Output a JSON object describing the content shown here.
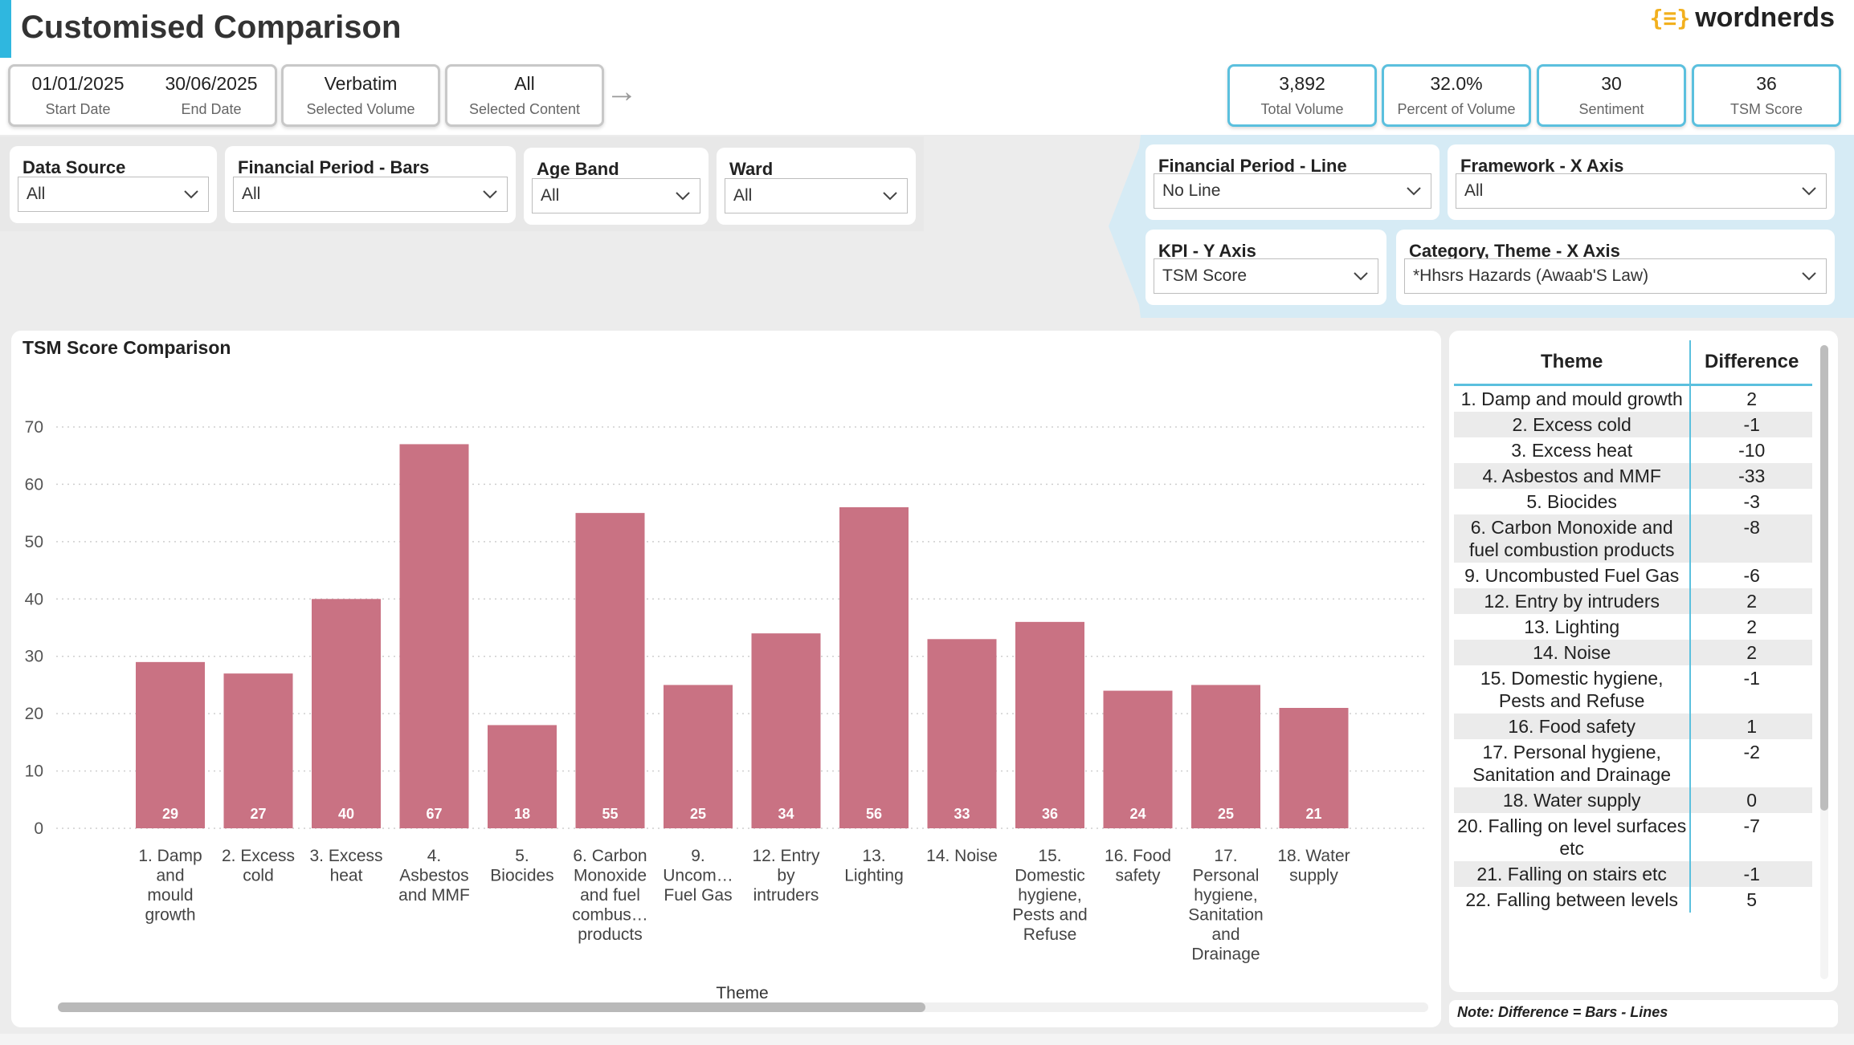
{
  "header": {
    "title": "Customised Comparison",
    "logo_text": "wordnerds",
    "accent_color": "#2fb7df"
  },
  "info_cards": {
    "start_date": {
      "value": "01/01/2025",
      "label": "Start Date"
    },
    "end_date": {
      "value": "30/06/2025",
      "label": "End Date"
    },
    "volume": {
      "value": "Verbatim",
      "label": "Selected Volume"
    },
    "content": {
      "value": "All",
      "label": "Selected Content"
    }
  },
  "kpis": [
    {
      "value": "3,892",
      "label": "Total Volume"
    },
    {
      "value": "32.0%",
      "label": "Percent of Volume"
    },
    {
      "value": "30",
      "label": "Sentiment"
    },
    {
      "value": "36",
      "label": "TSM Score"
    }
  ],
  "filters_left": [
    {
      "label": "Data Source",
      "value": "All"
    },
    {
      "label": "Financial Period - Bars",
      "value": "All"
    },
    {
      "label": "Age Band",
      "value": "All"
    },
    {
      "label": "Ward",
      "value": "All"
    }
  ],
  "filters_right": [
    {
      "label": "Financial Period - Line",
      "value": "No Line"
    },
    {
      "label": "Framework - X Axis",
      "value": "All"
    },
    {
      "label": "KPI - Y Axis",
      "value": "TSM Score"
    },
    {
      "label": "Category, Theme - X Axis",
      "value": "*Hhsrs Hazards (Awaab'S Law)"
    }
  ],
  "chart_data": {
    "type": "bar",
    "title": "TSM Score Comparison",
    "xlabel": "Theme",
    "ylabel": "",
    "ylim": [
      0,
      70
    ],
    "yticks": [
      "0",
      "10",
      "20",
      "30",
      "40",
      "50",
      "60",
      "70"
    ],
    "categories": [
      [
        "1. Damp",
        "and",
        "mould",
        "growth"
      ],
      [
        "2. Excess",
        "cold"
      ],
      [
        "3. Excess",
        "heat"
      ],
      [
        "4.",
        "Asbestos",
        "and MMF"
      ],
      [
        "5.",
        "Biocides"
      ],
      [
        "6. Carbon",
        "Monoxide",
        "and fuel",
        "combus…",
        "products"
      ],
      [
        "9.",
        "Uncom…",
        "Fuel Gas"
      ],
      [
        "12. Entry",
        "by",
        "intruders"
      ],
      [
        "13.",
        "Lighting"
      ],
      [
        "14. Noise"
      ],
      [
        "15.",
        "Domestic",
        "hygiene,",
        "Pests and",
        "Refuse"
      ],
      [
        "16. Food",
        "safety"
      ],
      [
        "17.",
        "Personal",
        "hygiene,",
        "Sanitation",
        "and",
        "Drainage"
      ],
      [
        "18. Water",
        "supply"
      ]
    ],
    "values": [
      29,
      27,
      40,
      67,
      18,
      55,
      25,
      34,
      56,
      33,
      36,
      24,
      25,
      21
    ],
    "data_labels": [
      "29",
      "27",
      "40",
      "67",
      "18",
      "55",
      "25",
      "34",
      "56",
      "33",
      "36",
      "24",
      "25",
      "21"
    ],
    "bar_color": "#c97283",
    "grid": true
  },
  "difference_table": {
    "columns": [
      "Theme",
      "Difference"
    ],
    "rows": [
      {
        "theme": "1. Damp and mould growth",
        "diff": "2"
      },
      {
        "theme": "2. Excess cold",
        "diff": "-1"
      },
      {
        "theme": "3. Excess heat",
        "diff": "-10"
      },
      {
        "theme": "4. Asbestos and MMF",
        "diff": "-33"
      },
      {
        "theme": "5. Biocides",
        "diff": "-3"
      },
      {
        "theme": "6. Carbon Monoxide and fuel combustion products",
        "diff": "-8"
      },
      {
        "theme": "9. Uncombusted Fuel Gas",
        "diff": "-6"
      },
      {
        "theme": "12. Entry by intruders",
        "diff": "2"
      },
      {
        "theme": "13. Lighting",
        "diff": "2"
      },
      {
        "theme": "14. Noise",
        "diff": "2"
      },
      {
        "theme": "15. Domestic hygiene, Pests and Refuse",
        "diff": "-1"
      },
      {
        "theme": "16. Food safety",
        "diff": "1"
      },
      {
        "theme": "17. Personal hygiene, Sanitation and Drainage",
        "diff": "-2"
      },
      {
        "theme": "18. Water supply",
        "diff": "0"
      },
      {
        "theme": "20. Falling on level surfaces etc",
        "diff": "-7"
      },
      {
        "theme": "21. Falling on stairs etc",
        "diff": "-1"
      },
      {
        "theme": "22. Falling between levels",
        "diff": "5"
      }
    ],
    "note": "Note: Difference = Bars - Lines"
  }
}
